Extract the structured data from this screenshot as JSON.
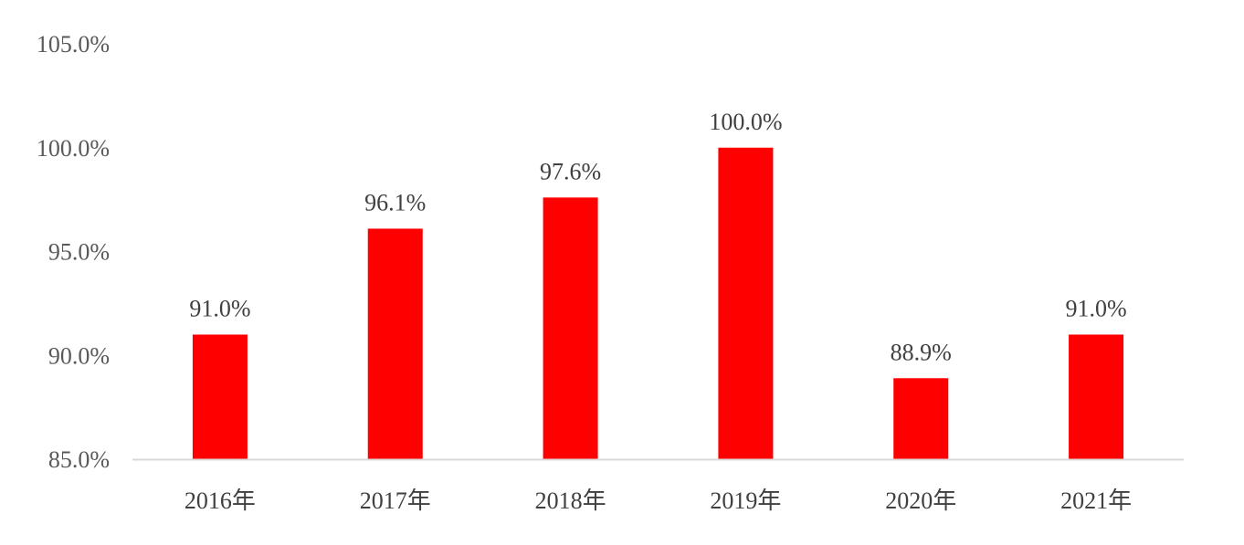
{
  "chart_data": {
    "type": "bar",
    "title": "",
    "xlabel": "",
    "ylabel": "",
    "categories": [
      "2016年",
      "2017年",
      "2018年",
      "2019年",
      "2020年",
      "2021年"
    ],
    "values": [
      91.0,
      96.1,
      97.6,
      100.0,
      88.9,
      91.0
    ],
    "data_labels": [
      "91.0%",
      "96.1%",
      "97.6%",
      "100.0%",
      "88.9%",
      "91.0%"
    ],
    "ylim": [
      85.0,
      105.0
    ],
    "yticks": [
      85.0,
      90.0,
      95.0,
      100.0,
      105.0
    ],
    "ytick_labels": [
      "85.0%",
      "90.0%",
      "95.0%",
      "100.0%",
      "105.0%"
    ],
    "grid": false,
    "legend": "none",
    "colors": {
      "bar": "#ff0000",
      "axis": "#d9d9d9"
    }
  }
}
